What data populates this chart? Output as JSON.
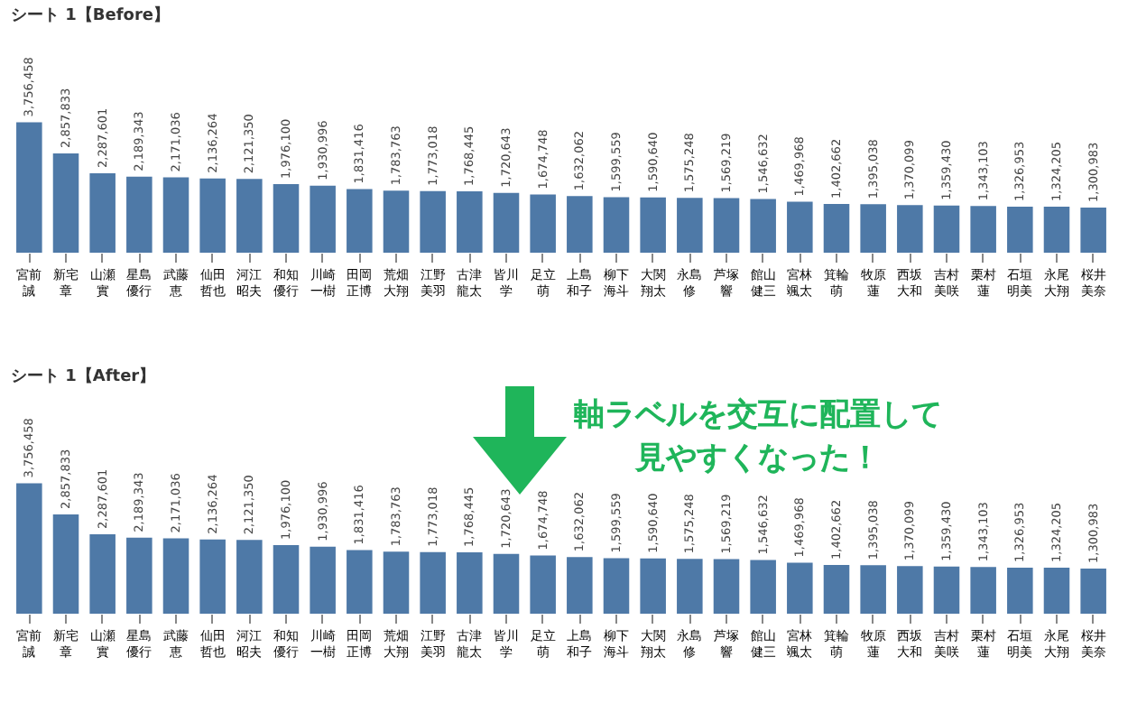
{
  "chart_data": [
    {
      "type": "bar",
      "title": "シート 1【Before】",
      "categories": [
        "宮前誠",
        "新宅章",
        "山瀬實",
        "星島優行",
        "武藤恵",
        "仙田哲也",
        "河江昭夫",
        "和知優行",
        "川崎一樹",
        "田岡正博",
        "荒畑大翔",
        "江野美羽",
        "古津龍太",
        "皆川学",
        "足立萌",
        "上島和子",
        "柳下海斗",
        "大関翔太",
        "永島修",
        "芦塚響",
        "館山健三",
        "宮林颯太",
        "箕輪萌",
        "牧原蓮",
        "西坂大和",
        "吉村美咲",
        "栗村蓮",
        "石垣明美",
        "永尾大翔",
        "桜井美奈"
      ],
      "values": [
        3756458,
        2857833,
        2287601,
        2189343,
        2171036,
        2136264,
        2121350,
        1976100,
        1930996,
        1831416,
        1783763,
        1773018,
        1768445,
        1720643,
        1674748,
        1632062,
        1599559,
        1590640,
        1575248,
        1569219,
        1546632,
        1469968,
        1402662,
        1395038,
        1370099,
        1359430,
        1343103,
        1326953,
        1324205,
        1300983
      ],
      "value_labels": [
        "3,756,458",
        "2,857,833",
        "2,287,601",
        "2,189,343",
        "2,171,036",
        "2,136,264",
        "2,121,350",
        "1,976,100",
        "1,930,996",
        "1,831,416",
        "1,783,763",
        "1,773,018",
        "1,768,445",
        "1,720,643",
        "1,674,748",
        "1,632,062",
        "1,599,559",
        "1,590,640",
        "1,575,248",
        "1,569,219",
        "1,546,632",
        "1,469,968",
        "1,402,662",
        "1,395,038",
        "1,370,099",
        "1,359,430",
        "1,343,103",
        "1,326,953",
        "1,324,205",
        "1,300,983"
      ],
      "color": "#4e79a7"
    },
    {
      "type": "bar",
      "title": "シート 1【After】",
      "categories": [
        "宮前誠",
        "新宅章",
        "山瀬實",
        "星島優行",
        "武藤恵",
        "仙田哲也",
        "河江昭夫",
        "和知優行",
        "川崎一樹",
        "田岡正博",
        "荒畑大翔",
        "江野美羽",
        "古津龍太",
        "皆川学",
        "足立萌",
        "上島和子",
        "柳下海斗",
        "大関翔太",
        "永島修",
        "芦塚響",
        "館山健三",
        "宮林颯太",
        "箕輪萌",
        "牧原蓮",
        "西坂大和",
        "吉村美咲",
        "栗村蓮",
        "石垣明美",
        "永尾大翔",
        "桜井美奈"
      ],
      "values": [
        3756458,
        2857833,
        2287601,
        2189343,
        2171036,
        2136264,
        2121350,
        1976100,
        1930996,
        1831416,
        1783763,
        1773018,
        1768445,
        1720643,
        1674748,
        1632062,
        1599559,
        1590640,
        1575248,
        1569219,
        1546632,
        1469968,
        1402662,
        1395038,
        1370099,
        1359430,
        1343103,
        1326953,
        1324205,
        1300983
      ],
      "value_labels": [
        "3,756,458",
        "2,857,833",
        "2,287,601",
        "2,189,343",
        "2,171,036",
        "2,136,264",
        "2,121,350",
        "1,976,100",
        "1,930,996",
        "1,831,416",
        "1,783,763",
        "1,773,018",
        "1,768,445",
        "1,720,643",
        "1,674,748",
        "1,632,062",
        "1,599,559",
        "1,590,640",
        "1,575,248",
        "1,569,219",
        "1,546,632",
        "1,469,968",
        "1,402,662",
        "1,395,038",
        "1,370,099",
        "1,359,430",
        "1,343,103",
        "1,326,953",
        "1,324,205",
        "1,300,983"
      ],
      "color": "#4e79a7",
      "annotations": [
        "軸ラベルを交互に配置して",
        "見やすくなった！"
      ]
    }
  ]
}
